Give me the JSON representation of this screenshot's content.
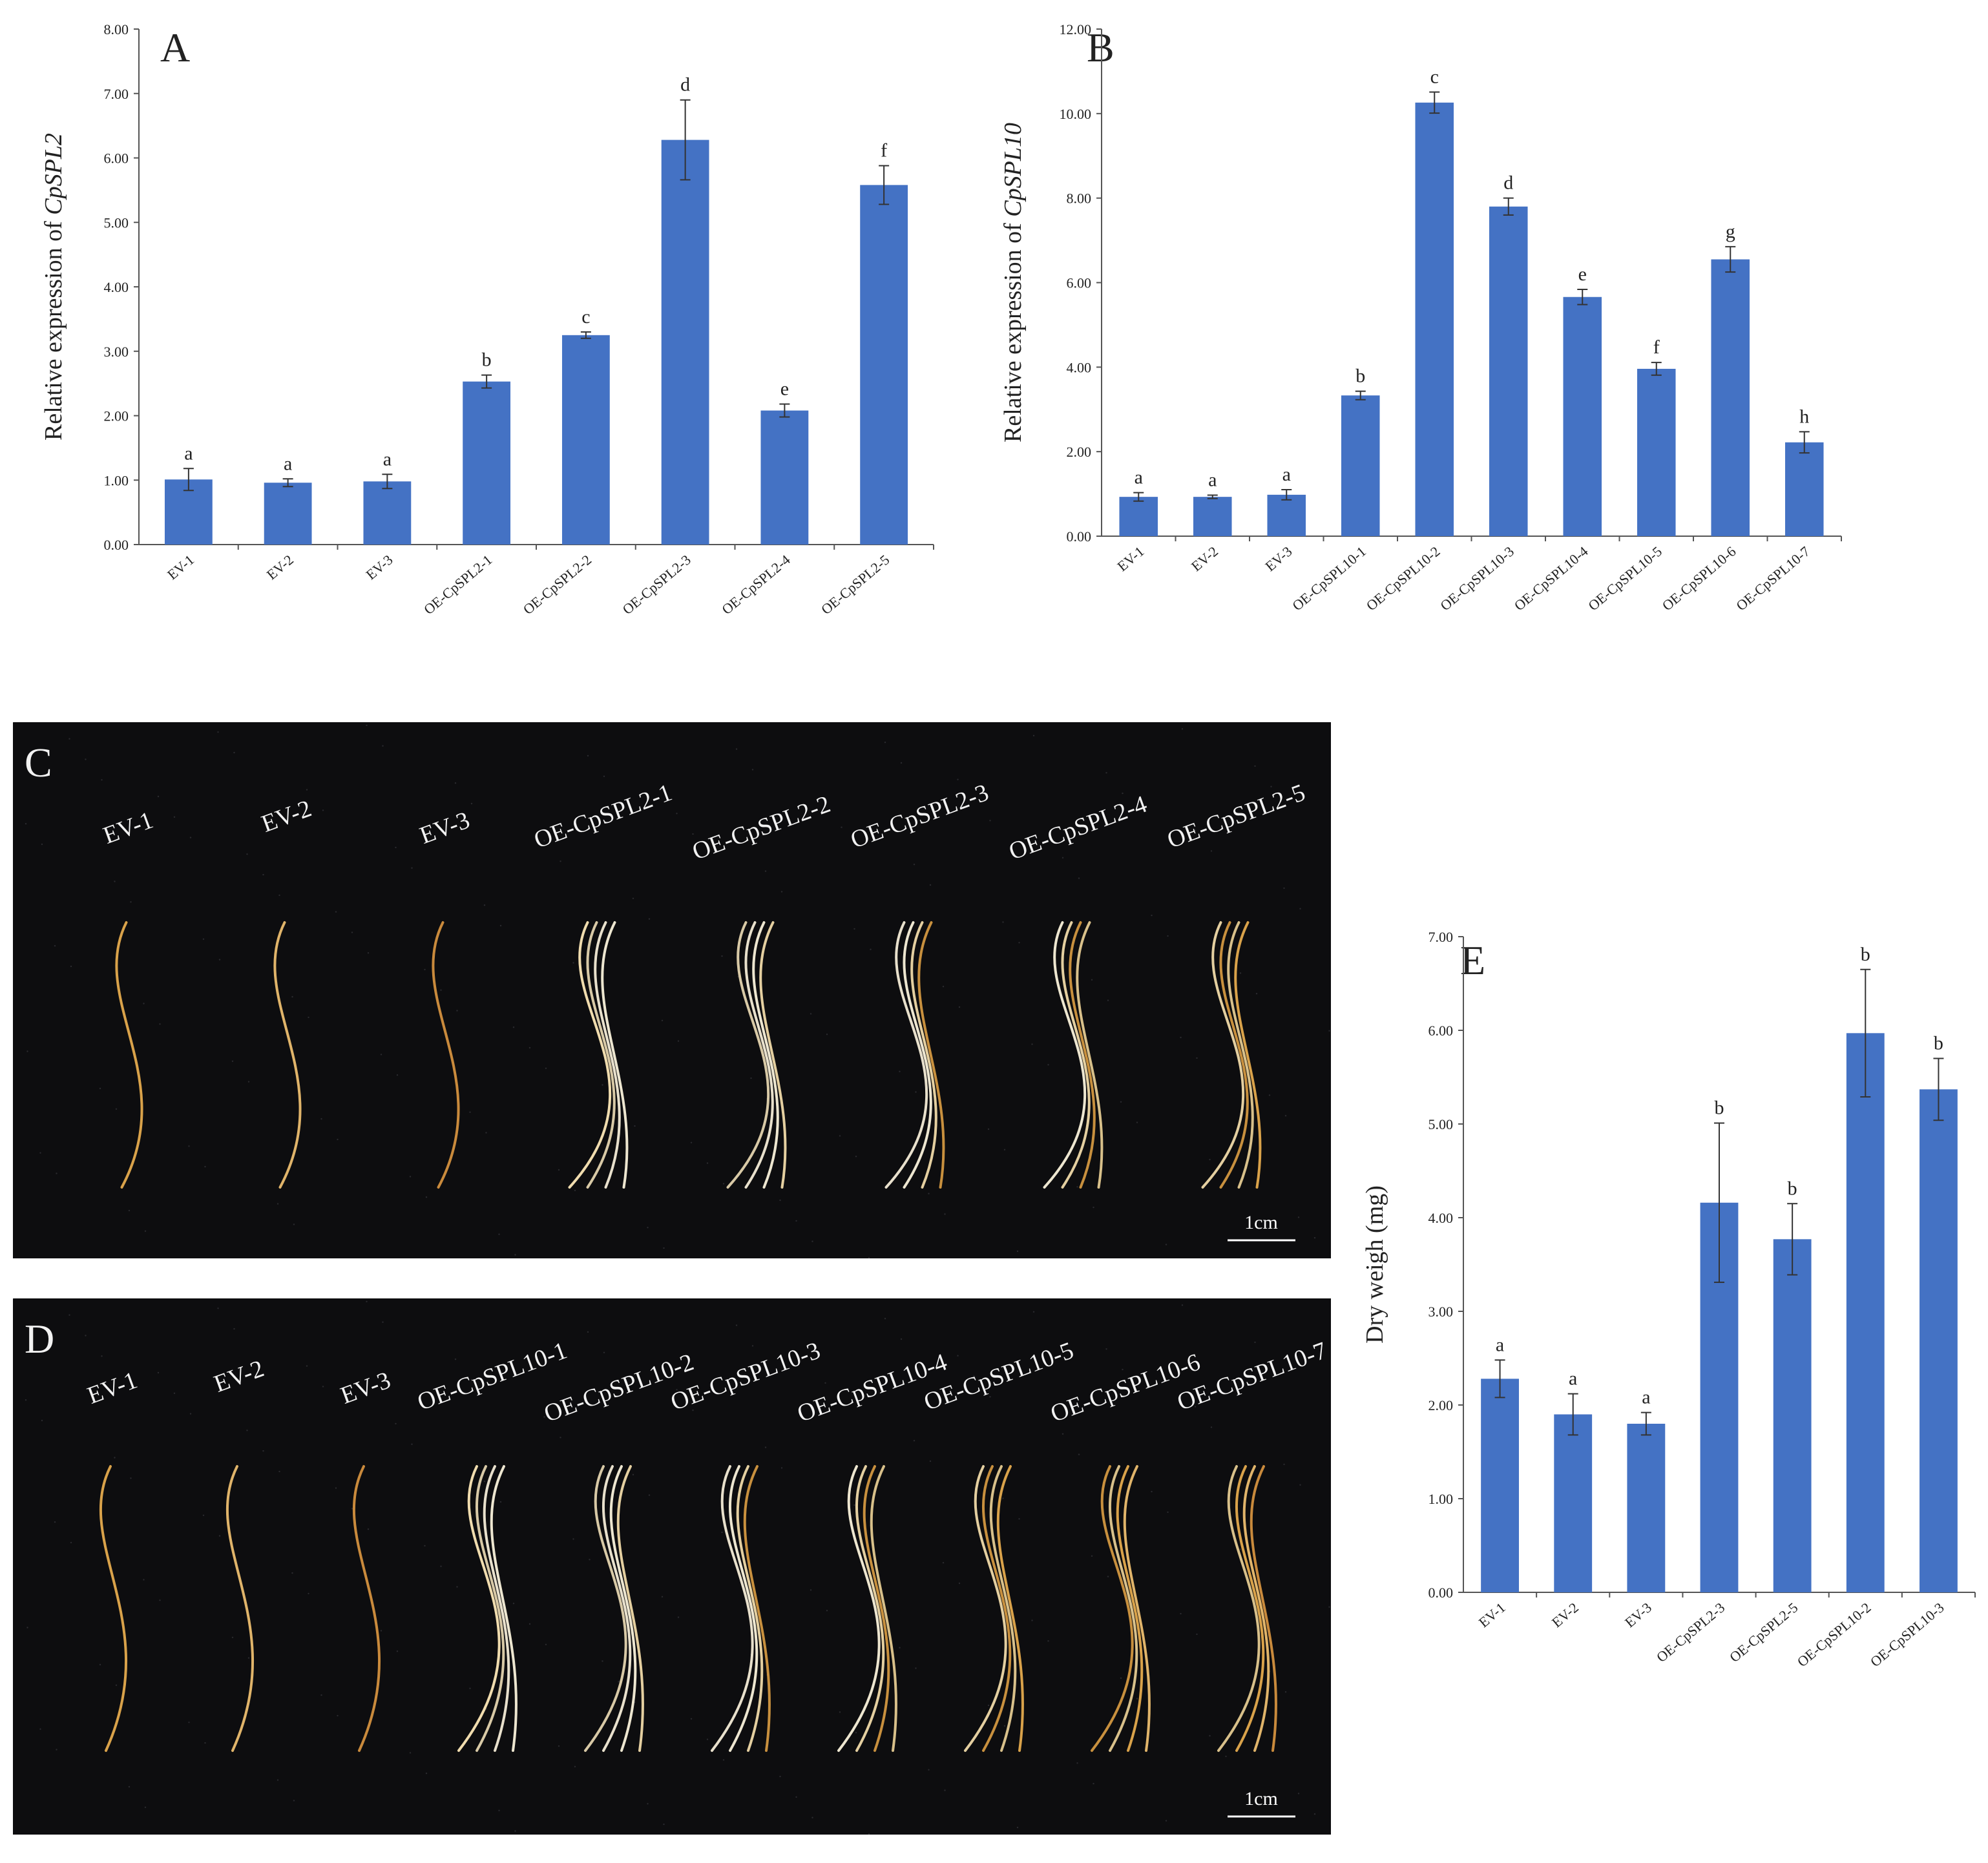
{
  "chart_data": [
    {
      "id": "A",
      "type": "bar",
      "panel_letter": "A",
      "ylabel_prefix": "Relative expression of ",
      "ylabel_gene": "CpSPL2",
      "ylim": [
        0,
        8
      ],
      "yticks": [
        "0.00",
        "1.00",
        "2.00",
        "3.00",
        "4.00",
        "5.00",
        "6.00",
        "7.00",
        "8.00"
      ],
      "categories": [
        "EV-1",
        "EV-2",
        "EV-3",
        "OE-CpSPL2-1",
        "OE-CpSPL2-2",
        "OE-CpSPL2-3",
        "OE-CpSPL2-4",
        "OE-CpSPL2-5"
      ],
      "values": [
        1.01,
        0.96,
        0.98,
        2.53,
        3.25,
        6.28,
        2.08,
        5.58
      ],
      "errors": [
        0.17,
        0.06,
        0.11,
        0.1,
        0.05,
        0.62,
        0.1,
        0.3
      ],
      "letters": [
        "a",
        "a",
        "a",
        "b",
        "c",
        "d",
        "e",
        "f"
      ],
      "color": "#4472C4"
    },
    {
      "id": "B",
      "type": "bar",
      "panel_letter": "B",
      "ylabel_prefix": "Relative expression of ",
      "ylabel_gene": "CpSPL10",
      "ylim": [
        0,
        12
      ],
      "yticks": [
        "0.00",
        "2.00",
        "4.00",
        "6.00",
        "8.00",
        "10.00",
        "12.00"
      ],
      "categories": [
        "EV-1",
        "EV-2",
        "EV-3",
        "OE-CpSPL10-1",
        "OE-CpSPL10-2",
        "OE-CpSPL10-3",
        "OE-CpSPL10-4",
        "OE-CpSPL10-5",
        "OE-CpSPL10-6",
        "OE-CpSPL10-7"
      ],
      "values": [
        0.93,
        0.93,
        0.98,
        3.33,
        10.26,
        7.8,
        5.66,
        3.96,
        6.55,
        2.22
      ],
      "errors": [
        0.1,
        0.04,
        0.12,
        0.1,
        0.25,
        0.2,
        0.18,
        0.15,
        0.3,
        0.25
      ],
      "letters": [
        "a",
        "a",
        "a",
        "b",
        "c",
        "d",
        "e",
        "f",
        "g",
        "h"
      ],
      "color": "#4472C4"
    },
    {
      "id": "E",
      "type": "bar",
      "panel_letter": "E",
      "ylabel": "Dry weigh (mg)",
      "ylim": [
        0,
        7
      ],
      "yticks": [
        "0.00",
        "1.00",
        "2.00",
        "3.00",
        "4.00",
        "5.00",
        "6.00",
        "7.00"
      ],
      "categories": [
        "EV-1",
        "EV-2",
        "EV-3",
        "OE-CpSPL2-3",
        "OE-CpSPL2-5",
        "OE-CpSPL10-2",
        "OE-CpSPL10-3"
      ],
      "values": [
        2.28,
        1.9,
        1.8,
        4.16,
        3.77,
        5.97,
        5.37
      ],
      "errors": [
        0.2,
        0.22,
        0.12,
        0.85,
        0.38,
        0.68,
        0.33
      ],
      "letters": [
        "a",
        "a",
        "a",
        "b",
        "b",
        "b",
        "b"
      ],
      "color": "#4472C4"
    }
  ],
  "photos": [
    {
      "id": "C",
      "panel_letter": "C",
      "labels": [
        "EV-1",
        "EV-2",
        "EV-3",
        "OE-CpSPL2-1",
        "OE-CpSPL2-2",
        "OE-CpSPL2-3",
        "OE-CpSPL2-4",
        "OE-CpSPL2-5"
      ],
      "scale_label": "1cm"
    },
    {
      "id": "D",
      "panel_letter": "D",
      "labels": [
        "EV-1",
        "EV-2",
        "EV-3",
        "OE-CpSPL10-1",
        "OE-CpSPL10-2",
        "OE-CpSPL10-3",
        "OE-CpSPL10-4",
        "OE-CpSPL10-5",
        "OE-CpSPL10-6",
        "OE-CpSPL10-7"
      ],
      "scale_label": "1cm"
    }
  ]
}
